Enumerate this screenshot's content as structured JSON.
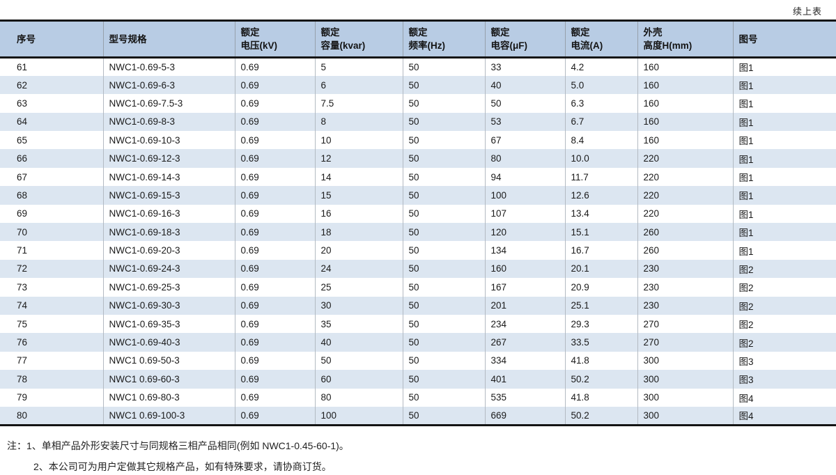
{
  "page": {
    "continued_label": "续上表",
    "notes": {
      "prefix": "注：",
      "items": [
        "1、单相产品外形安装尺寸与同规格三相产品相同(例如 NWC1-0.45-60-1)。",
        "2、本公司可为用户定做其它规格产品，如有特殊要求，请协商订货。"
      ]
    }
  },
  "colors": {
    "header_bg": "#b8cce4",
    "row_alt_bg": "#dce6f1",
    "rule_dark": "#141414"
  },
  "table": {
    "headers": [
      "序号",
      "型号规格",
      "额定\n电压(kV)",
      "额定\n容量(kvar)",
      "额定\n频率(Hz)",
      "额定\n电容(μF)",
      "额定\n电流(A)",
      "外壳\n高度H(mm)",
      "图号"
    ],
    "rows": [
      [
        "61",
        "NWC1-0.69-5-3",
        "0.69",
        "5",
        "50",
        "33",
        "4.2",
        "160",
        "图1"
      ],
      [
        "62",
        "NWC1-0.69-6-3",
        "0.69",
        "6",
        "50",
        "40",
        "5.0",
        "160",
        "图1"
      ],
      [
        "63",
        "NWC1-0.69-7.5-3",
        "0.69",
        "7.5",
        "50",
        "50",
        "6.3",
        "160",
        "图1"
      ],
      [
        "64",
        "NWC1-0.69-8-3",
        "0.69",
        "8",
        "50",
        "53",
        "6.7",
        "160",
        "图1"
      ],
      [
        "65",
        "NWC1-0.69-10-3",
        "0.69",
        "10",
        "50",
        "67",
        "8.4",
        "160",
        "图1"
      ],
      [
        "66",
        "NWC1-0.69-12-3",
        "0.69",
        "12",
        "50",
        "80",
        "10.0",
        "220",
        "图1"
      ],
      [
        "67",
        "NWC1-0.69-14-3",
        "0.69",
        "14",
        "50",
        "94",
        "11.7",
        "220",
        "图1"
      ],
      [
        "68",
        "NWC1-0.69-15-3",
        "0.69",
        "15",
        "50",
        "100",
        "12.6",
        "220",
        "图1"
      ],
      [
        "69",
        "NWC1-0.69-16-3",
        "0.69",
        "16",
        "50",
        "107",
        "13.4",
        "220",
        "图1"
      ],
      [
        "70",
        "NWC1-0.69-18-3",
        "0.69",
        "18",
        "50",
        "120",
        "15.1",
        "260",
        "图1"
      ],
      [
        "71",
        "NWC1-0.69-20-3",
        "0.69",
        "20",
        "50",
        "134",
        "16.7",
        "260",
        "图1"
      ],
      [
        "72",
        "NWC1-0.69-24-3",
        "0.69",
        "24",
        "50",
        "160",
        "20.1",
        "230",
        "图2"
      ],
      [
        "73",
        "NWC1-0.69-25-3",
        "0.69",
        "25",
        "50",
        "167",
        "20.9",
        "230",
        "图2"
      ],
      [
        "74",
        "NWC1-0.69-30-3",
        "0.69",
        "30",
        "50",
        "201",
        "25.1",
        "230",
        "图2"
      ],
      [
        "75",
        "NWC1-0.69-35-3",
        "0.69",
        "35",
        "50",
        "234",
        "29.3",
        "270",
        "图2"
      ],
      [
        "76",
        "NWC1-0.69-40-3",
        "0.69",
        "40",
        "50",
        "267",
        "33.5",
        "270",
        "图2"
      ],
      [
        "77",
        "NWC1 0.69-50-3",
        "0.69",
        "50",
        "50",
        "334",
        "41.8",
        "300",
        "图3"
      ],
      [
        "78",
        "NWC1 0.69-60-3",
        "0.69",
        "60",
        "50",
        "401",
        "50.2",
        "300",
        "图3"
      ],
      [
        "79",
        "NWC1 0.69-80-3",
        "0.69",
        "80",
        "50",
        "535",
        "41.8",
        "300",
        "图4"
      ],
      [
        "80",
        "NWC1 0.69-100-3",
        "0.69",
        "100",
        "50",
        "669",
        "50.2",
        "300",
        "图4"
      ]
    ]
  }
}
